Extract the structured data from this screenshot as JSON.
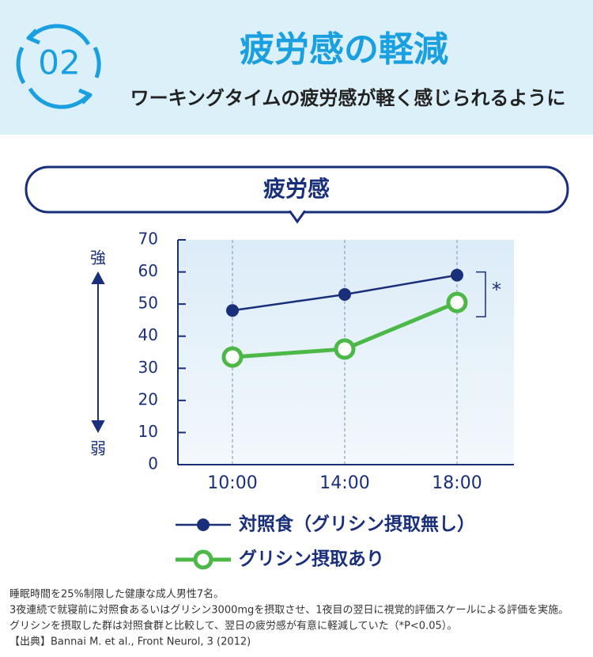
{
  "header": {
    "number": "02",
    "title": "疲労感の軽減",
    "subtitle": "ワーキングタイムの疲労感が軽く感じられるように"
  },
  "chart_data": {
    "type": "line",
    "title": "疲労感",
    "categories": [
      "10:00",
      "14:00",
      "18:00"
    ],
    "series": [
      {
        "name": "対照食（グリシン摂取無し）",
        "color": "#1a2f7a",
        "marker": "filled",
        "values": [
          48,
          53,
          59
        ]
      },
      {
        "name": "グリシン摂取あり",
        "color": "#4cb847",
        "marker": "hollow",
        "values": [
          33.5,
          36,
          50.5
        ]
      }
    ],
    "ylim": [
      0,
      70
    ],
    "yticks": [
      0,
      10,
      20,
      30,
      40,
      50,
      60,
      70
    ],
    "axis_high": "強",
    "axis_low": "弱",
    "annotation": "*"
  },
  "notes": [
    "睡眠時間を25%制限した健康な成人男性7名。",
    "3夜連続で就寝前に対照食あるいはグリシン3000mgを摂取させ、1夜目の翌日に視覚的評価スケールによる評価を実施。",
    "グリシンを摂取した群は対照食群と比較して、翌日の疲労感が有意に軽減していた（*P<0.05）。",
    "【出典】Bannai M. et al., Front Neurol, 3 (2012)"
  ]
}
